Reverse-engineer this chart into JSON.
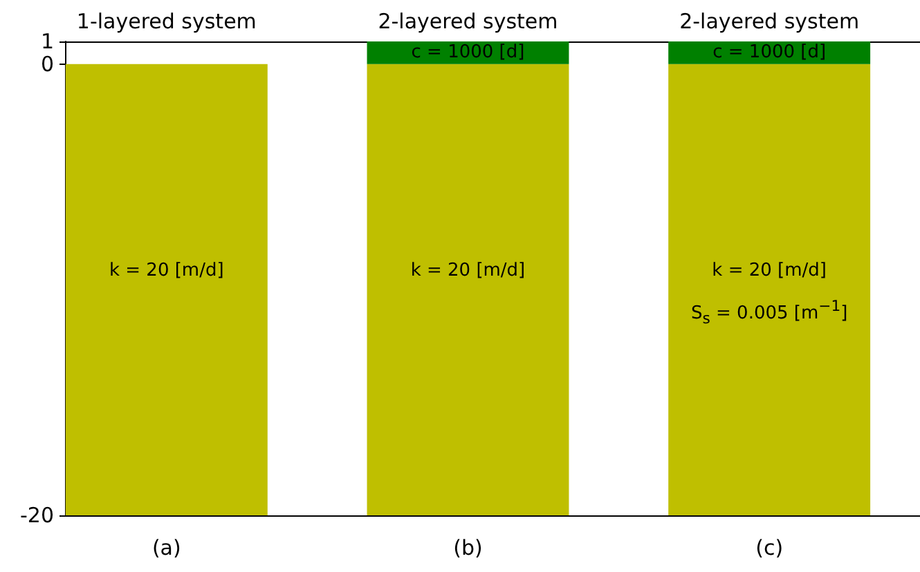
{
  "chart_data": {
    "type": "bar",
    "categories": [
      "(a)",
      "(b)",
      "(c)"
    ],
    "series": [
      {
        "color": "#bfbf00",
        "base": [
          -20,
          -20,
          -20
        ],
        "values": [
          20,
          20,
          20
        ]
      },
      {
        "color": "#008000",
        "base": [
          null,
          0,
          0
        ],
        "values": [
          null,
          1,
          1
        ]
      }
    ],
    "annotations": [
      "1-layered system",
      "2-layered system",
      "2-layered system",
      "c = 1000 [d]",
      "c = 1000 [d]",
      "k = 20 [m/d]",
      "k = 20 [m/d]",
      "k = 20 [m/d]",
      "S$_{s}$ = 0.005 [m$^{−1}$]"
    ],
    "ylim": [
      -20,
      1
    ],
    "yticks": [
      -20,
      0,
      1
    ],
    "grid": false
  }
}
